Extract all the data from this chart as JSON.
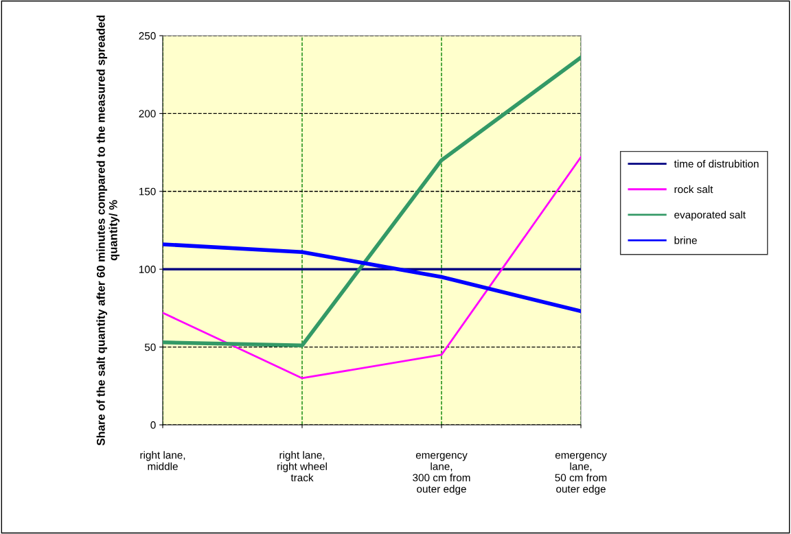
{
  "chart_data": {
    "type": "line",
    "ylabel": "Share of the salt quantity after 60 minutes compared to the measured spreaded quantity/ %",
    "categories": [
      "right lane,\nmiddle",
      "right lane,\nright wheel\ntrack",
      "emergency\nlane,\n300 cm from\nouter edge",
      "emergency\nlane,\n50 cm from\nouter edge"
    ],
    "series": [
      {
        "name": "time of distrubition",
        "color": "#000080",
        "values": [
          100,
          100,
          100,
          100
        ]
      },
      {
        "name": "rock salt",
        "color": "#ff00ff",
        "values": [
          72,
          30,
          45,
          172
        ]
      },
      {
        "name": "evaporated salt",
        "color": "#339966",
        "values": [
          53,
          51,
          170,
          236
        ]
      },
      {
        "name": "brine",
        "color": "#0000ff",
        "values": [
          116,
          111,
          95,
          73
        ]
      }
    ],
    "ylim": [
      0,
      250
    ],
    "yticks": [
      0,
      50,
      100,
      150,
      200,
      250
    ],
    "grid": true,
    "legend": "right",
    "marker": "none",
    "line_style": "solid"
  }
}
